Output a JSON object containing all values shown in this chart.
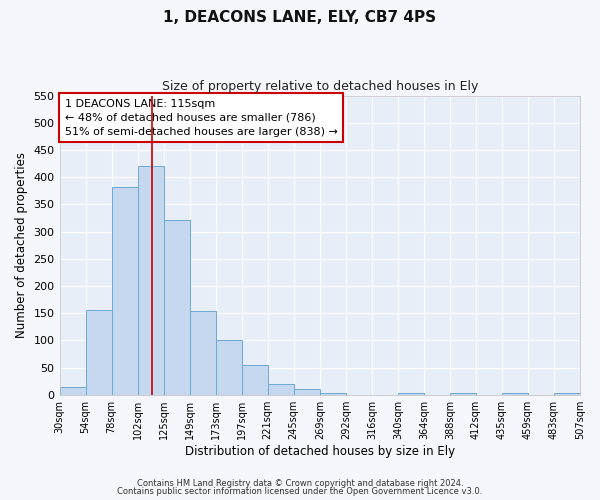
{
  "title": "1, DEACONS LANE, ELY, CB7 4PS",
  "subtitle": "Size of property relative to detached houses in Ely",
  "xlabel": "Distribution of detached houses by size in Ely",
  "ylabel": "Number of detached properties",
  "bar_values": [
    15,
    155,
    382,
    420,
    322,
    153,
    100,
    55,
    20,
    10,
    3,
    0,
    0,
    3,
    0,
    3,
    0,
    3,
    0,
    3
  ],
  "bin_labels": [
    "30sqm",
    "54sqm",
    "78sqm",
    "102sqm",
    "125sqm",
    "149sqm",
    "173sqm",
    "197sqm",
    "221sqm",
    "245sqm",
    "269sqm",
    "292sqm",
    "316sqm",
    "340sqm",
    "364sqm",
    "388sqm",
    "412sqm",
    "435sqm",
    "459sqm",
    "483sqm",
    "507sqm"
  ],
  "ylim": [
    0,
    550
  ],
  "yticks": [
    0,
    50,
    100,
    150,
    200,
    250,
    300,
    350,
    400,
    450,
    500,
    550
  ],
  "bar_color": "#c5d8f0",
  "bar_edge_color": "#6aaad4",
  "bg_color": "#e8eef8",
  "grid_color": "#ffffff",
  "annotation_title": "1 DEACONS LANE: 115sqm",
  "annotation_line1": "← 48% of detached houses are smaller (786)",
  "annotation_line2": "51% of semi-detached houses are larger (838) →",
  "annotation_box_color": "#ffffff",
  "annotation_border_color": "#cc0000",
  "property_line_color": "#cc0000",
  "footer_line1": "Contains HM Land Registry data © Crown copyright and database right 2024.",
  "footer_line2": "Contains public sector information licensed under the Open Government Licence v3.0."
}
